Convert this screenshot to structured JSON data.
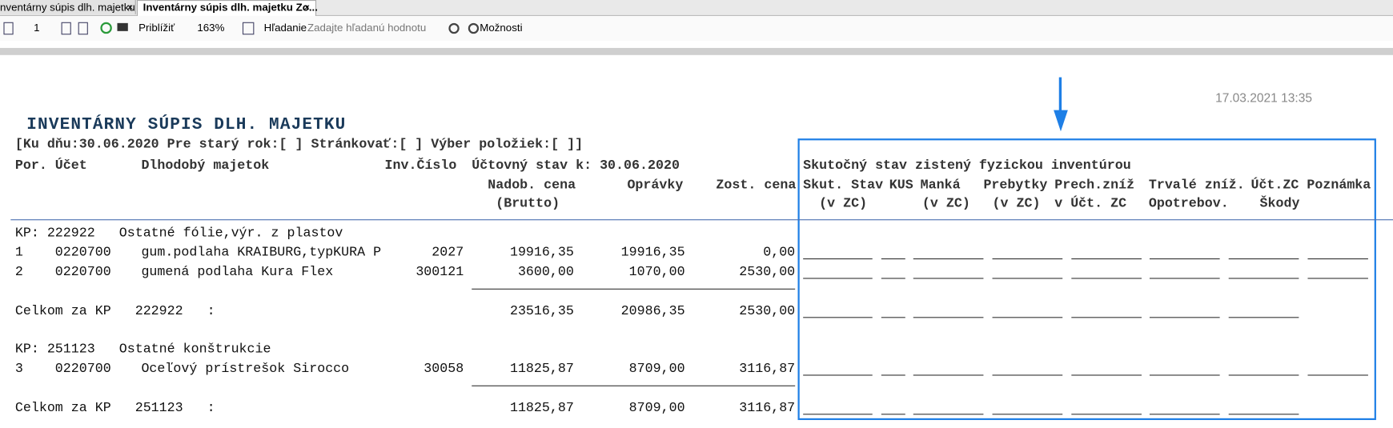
{
  "tabs": [
    "nventárny súpis dlh. majetku",
    "Inventárny súpis dlh. majetku Zo..."
  ],
  "toolbar": {
    "page": "1",
    "zoom_label": "Priblížiť",
    "zoom": "163%",
    "search_label": "Hľadanie",
    "search_placeholder": "Zadajte hľadanú hodnotu",
    "options": "Možnosti"
  },
  "report": {
    "timestamp": "17.03.2021 13:35",
    "title": "INVENTÁRNY SÚPIS DLH. MAJETKU",
    "params": "[Ku dňu:30.06.2020 Pre starý rok:[ ] Stránkovať:[ ] Výber položiek:[ ]]",
    "header1": [
      "Por.",
      "Účet",
      "Dlhodobý majetok",
      "Inv.Číslo",
      "Účtovný stav k: 30.06.2020",
      "Skutočný stav zistený fyzickou inventúrou"
    ],
    "header2": [
      "Nadob. cena",
      "Oprávky",
      "Zost. cena",
      "Skut. Stav",
      "KUS",
      "Manká",
      "Prebytky",
      "Prech.zníž",
      "Trvalé zníž.",
      "Účt.ZC",
      "Poznámka"
    ],
    "header3": [
      "(Brutto)",
      "(v ZC)",
      "(v ZC)",
      "(v ZC)",
      "v Účt. ZC",
      "Opotrebov.",
      "Škody"
    ],
    "groups": [
      {
        "label": "KP: 222922   Ostatné fólie,výr. z plastov",
        "rows": [
          [
            "1",
            "0220700",
            "gum.podlaha KRAIBURG,typKURA P",
            "2027",
            "19916,35",
            "19916,35",
            "0,00"
          ],
          [
            "2",
            "0220700",
            "gumená podlaha Kura Flex",
            "300121",
            "3600,00",
            "1070,00",
            "2530,00"
          ]
        ],
        "total": [
          "Celkom za KP   222922   :",
          "23516,35",
          "20986,35",
          "2530,00"
        ]
      },
      {
        "label": "KP: 251123   Ostatné konštrukcie",
        "rows": [
          [
            "3",
            "0220700",
            "Oceľový prístrešok Sirocco",
            "30058",
            "11825,87",
            "8709,00",
            "3116,87"
          ]
        ],
        "total": [
          "Celkom za KP   251123   :",
          "11825,87",
          "8709,00",
          "3116,87"
        ]
      }
    ]
  }
}
